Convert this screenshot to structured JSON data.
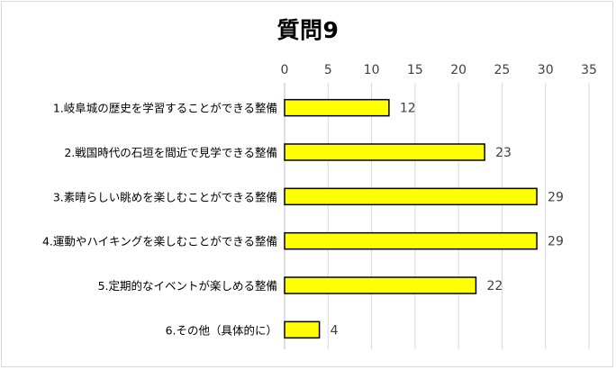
{
  "chart_data": {
    "type": "bar",
    "orientation": "horizontal",
    "title": "質問9",
    "categories": [
      "1.岐阜城の歴史を学習することができる整備",
      "2.戦国時代の石垣を間近で見学できる整備",
      "3.素晴らしい眺めを楽しむことができる整備",
      "4.運動やハイキングを楽しむことができる整備",
      "5.定期的なイベントが楽しめる整備",
      "6.その他（具体的に）"
    ],
    "values": [
      12,
      23,
      29,
      29,
      22,
      4
    ],
    "xlim": [
      0,
      35
    ],
    "xticks": [
      0,
      5,
      10,
      15,
      20,
      25,
      30,
      35
    ],
    "axis_position": "top",
    "grid": true,
    "data_labels": true,
    "colors": {
      "bar": "#ffff00",
      "bar_stroke": "#000000",
      "grid": "#d9d9d9",
      "text": "#404040"
    }
  }
}
